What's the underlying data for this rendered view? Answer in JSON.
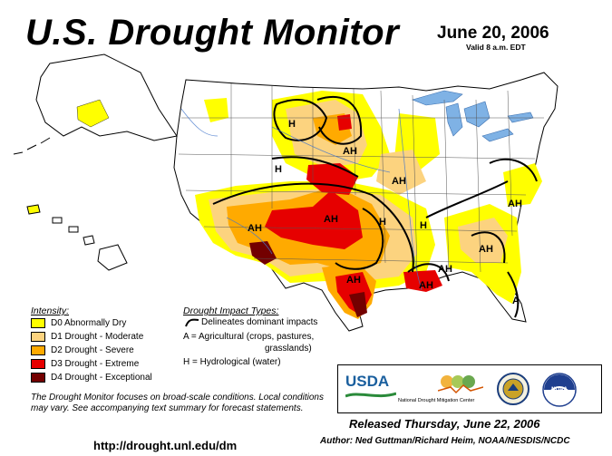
{
  "header": {
    "title": "U.S. Drought Monitor",
    "date": "June 20, 2006",
    "valid": "Valid 8 a.m. EDT"
  },
  "legend": {
    "intensity_title": "Intensity:",
    "items": [
      {
        "label": "D0 Abnormally Dry",
        "color": "#ffff00"
      },
      {
        "label": "D1 Drought - Moderate",
        "color": "#fcd37f"
      },
      {
        "label": "D2 Drought - Severe",
        "color": "#ffaa00"
      },
      {
        "label": "D3 Drought - Extreme",
        "color": "#e60000"
      },
      {
        "label": "D4 Drought - Exceptional",
        "color": "#730000"
      }
    ],
    "impact_title": "Drought Impact Types:",
    "impact_line": "Delineates dominant impacts",
    "impact_a": "A = Agricultural (crops, pastures,",
    "impact_a2": "grasslands)",
    "impact_h": "H = Hydrological (water)"
  },
  "note": "The Drought Monitor focuses on broad-scale conditions. Local conditions may vary. See accompanying text summary for forecast statements.",
  "url": "http://drought.unl.edu/dm",
  "released": "Released Thursday, June 22, 2006",
  "author": "Author:  Ned Guttman/Richard Heim, NOAA/NESDIS/NCDC",
  "logos": {
    "usda": "USDA",
    "ndmc": "National Drought Mitigation Center",
    "noaa": "NOAA"
  },
  "map_labels": [
    {
      "text": "H"
    },
    {
      "text": "AH"
    },
    {
      "text": "H"
    },
    {
      "text": "AH"
    },
    {
      "text": "AH"
    },
    {
      "text": "H"
    },
    {
      "text": "AH"
    },
    {
      "text": "H"
    },
    {
      "text": "AH"
    },
    {
      "text": "AH"
    },
    {
      "text": "AH"
    },
    {
      "text": "AH"
    },
    {
      "text": "AH"
    },
    {
      "text": "A"
    }
  ]
}
